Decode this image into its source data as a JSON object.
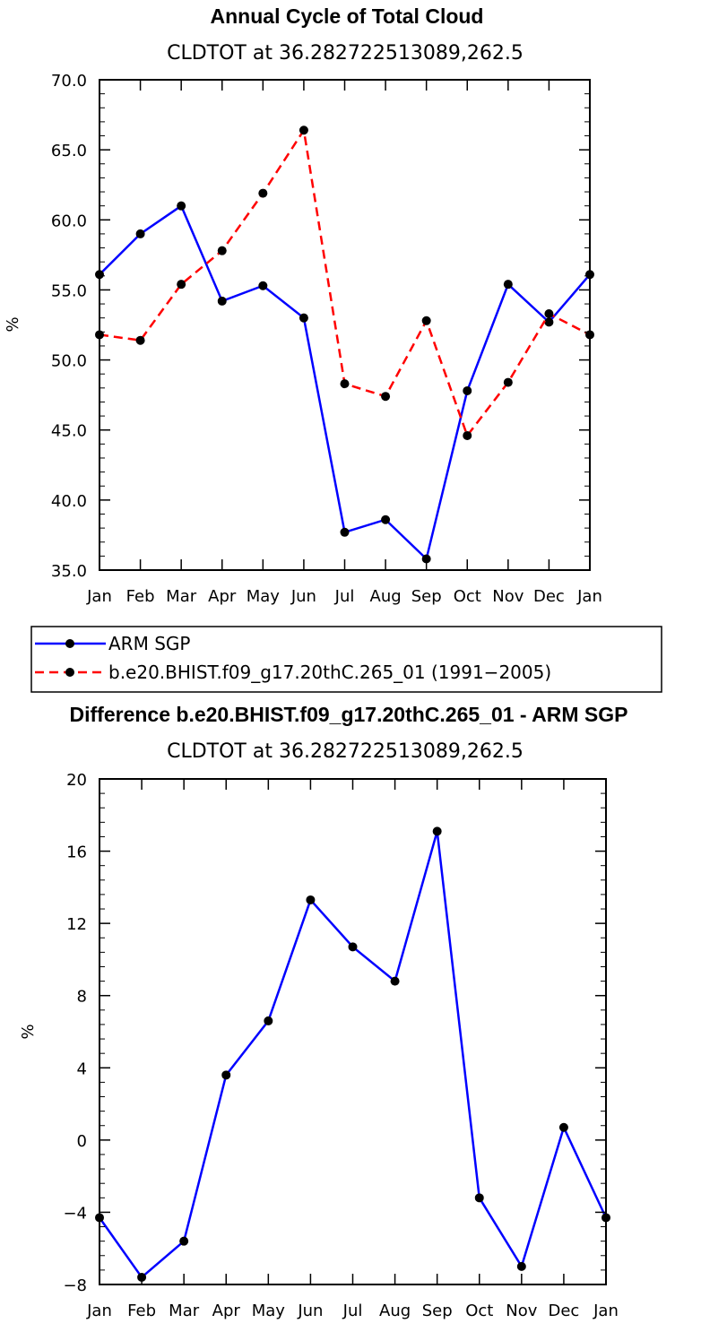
{
  "chart_data": [
    {
      "type": "line",
      "title": "Annual Cycle of Total Cloud",
      "subtitle": "CLDTOT at 36.282722513089,262.5",
      "xlabel": "",
      "ylabel": "%",
      "categories": [
        "Jan",
        "Feb",
        "Mar",
        "Apr",
        "May",
        "Jun",
        "Jul",
        "Aug",
        "Sep",
        "Oct",
        "Nov",
        "Dec",
        "Jan"
      ],
      "ylim": [
        35,
        70
      ],
      "yticks": [
        35,
        40,
        45,
        50,
        55,
        60,
        65,
        70
      ],
      "ytick_labels": [
        "35.0",
        "40.0",
        "45.0",
        "50.0",
        "55.0",
        "60.0",
        "65.0",
        "70.0"
      ],
      "series": [
        {
          "name": "ARM SGP",
          "color": "#0000ff",
          "dash": "solid",
          "values": [
            56.1,
            59.0,
            61.0,
            54.2,
            55.3,
            53.0,
            37.7,
            38.6,
            35.8,
            47.8,
            55.4,
            52.7,
            56.1
          ]
        },
        {
          "name": "b.e20.BHIST.f09_g17.20thC.265_01 (1991-2005)",
          "color": "#ff0000",
          "dash": "dashed",
          "values": [
            51.8,
            51.4,
            55.4,
            57.8,
            61.9,
            66.4,
            48.3,
            47.4,
            52.8,
            44.6,
            48.4,
            53.3,
            51.8
          ]
        }
      ]
    },
    {
      "type": "line",
      "title": "Difference b.e20.BHIST.f09_g17.20thC.265_01 - ARM SGP",
      "subtitle": "CLDTOT at 36.282722513089,262.5",
      "xlabel": "",
      "ylabel": "%",
      "categories": [
        "Jan",
        "Feb",
        "Mar",
        "Apr",
        "May",
        "Jun",
        "Jul",
        "Aug",
        "Sep",
        "Oct",
        "Nov",
        "Dec",
        "Jan"
      ],
      "ylim": [
        -8,
        20
      ],
      "yticks": [
        -8,
        -4,
        0,
        4,
        8,
        12,
        16,
        20
      ],
      "ytick_labels": [
        "−8",
        "−4",
        "0",
        "4",
        "8",
        "12",
        "16",
        "20"
      ],
      "series": [
        {
          "name": "Difference",
          "color": "#0000ff",
          "dash": "solid",
          "values": [
            -4.3,
            -7.6,
            -5.6,
            3.6,
            6.6,
            13.3,
            10.7,
            8.8,
            17.1,
            -3.2,
            -7.0,
            0.7,
            -4.3
          ]
        }
      ]
    }
  ],
  "legend": {
    "entries": [
      "ARM SGP",
      "b.e20.BHIST.f09_g17.20thC.265_01 (1991−2005)"
    ]
  }
}
